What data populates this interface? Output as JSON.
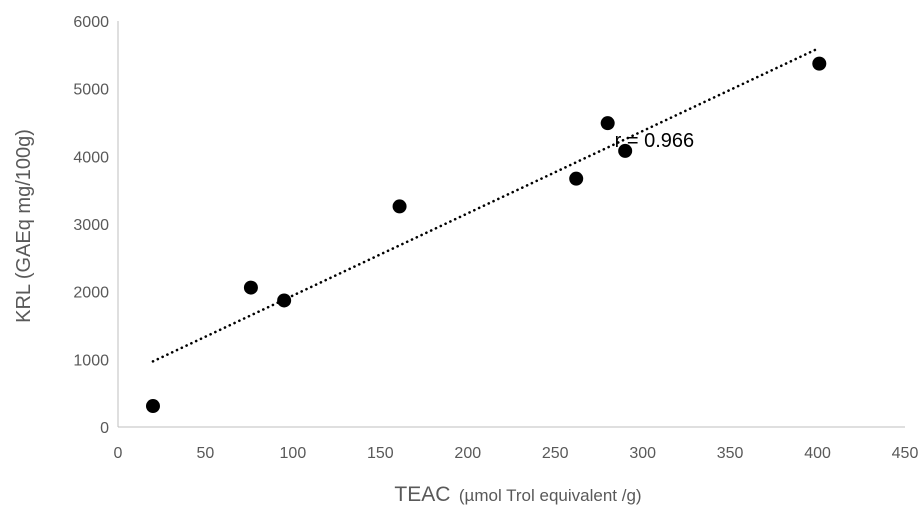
{
  "chart_data": {
    "type": "scatter",
    "title": "",
    "xlabel_main": "TEAC",
    "xlabel_unit": "(µmol Trol equivalent /g)",
    "ylabel": "KRL (GAEq mg/100g)",
    "xlim": [
      0,
      450
    ],
    "ylim": [
      0,
      6000
    ],
    "x_ticks": [
      0,
      50,
      100,
      150,
      200,
      250,
      300,
      350,
      400,
      450
    ],
    "y_ticks": [
      0,
      1000,
      2000,
      3000,
      4000,
      5000,
      6000
    ],
    "x_tick_labels": [
      "0",
      "50",
      "100",
      "150",
      "200",
      "250",
      "300",
      "350",
      "400",
      "450"
    ],
    "y_tick_labels": [
      "0",
      "1000",
      "2000",
      "3000",
      "4000",
      "5000",
      "6000"
    ],
    "grid": false,
    "series": [
      {
        "points": [
          {
            "x": 20,
            "y": 310
          },
          {
            "x": 76,
            "y": 2060
          },
          {
            "x": 95,
            "y": 1870
          },
          {
            "x": 161,
            "y": 3260
          },
          {
            "x": 262,
            "y": 3670
          },
          {
            "x": 280,
            "y": 4490
          },
          {
            "x": 290,
            "y": 4080
          },
          {
            "x": 401,
            "y": 5370
          }
        ]
      }
    ],
    "trendline": {
      "style": "dotted",
      "x": [
        20,
        400
      ],
      "y": [
        970,
        5590
      ]
    },
    "annotations": [
      {
        "text": "r = 0.966",
        "x": 284,
        "y": 4240
      }
    ],
    "colors": {
      "marker": "#000000",
      "axis": "#bfbfbf",
      "text": "#595959"
    }
  }
}
